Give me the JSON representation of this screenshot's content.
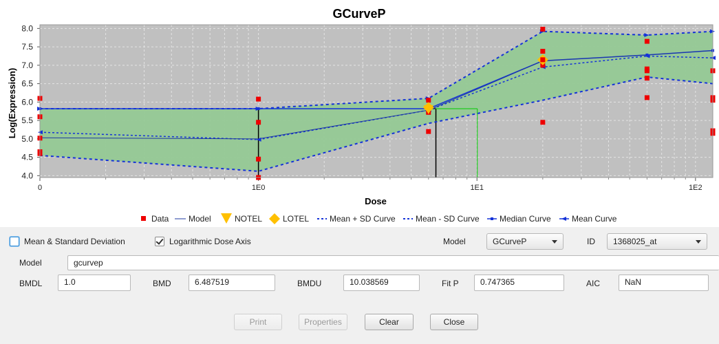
{
  "chart_data": {
    "type": "line",
    "title": "GCurveP",
    "xlabel": "Dose",
    "ylabel": "Log(Expression)",
    "x_scale": "log",
    "xlim": [
      0.1,
      120
    ],
    "ylim": [
      3.95,
      8.1
    ],
    "x_ticks": [
      {
        "value": 0.1,
        "label": "0"
      },
      {
        "value": 1,
        "label": "1E0"
      },
      {
        "value": 10,
        "label": "1E1"
      },
      {
        "value": 100,
        "label": "1E2"
      }
    ],
    "y_ticks": [
      {
        "value": 4.0,
        "label": "4.0"
      },
      {
        "value": 4.5,
        "label": "4.5"
      },
      {
        "value": 5.0,
        "label": "5.0"
      },
      {
        "value": 5.5,
        "label": "5.5"
      },
      {
        "value": 6.0,
        "label": "6.0"
      },
      {
        "value": 6.5,
        "label": "6.5"
      },
      {
        "value": 7.0,
        "label": "7.0"
      },
      {
        "value": 7.5,
        "label": "7.5"
      },
      {
        "value": 8.0,
        "label": "8.0"
      }
    ],
    "grid": true,
    "legend_position": "bottom",
    "colors": {
      "plot_bg": "#c0c0c0",
      "band": "#95c995",
      "data": "#ee0000",
      "curves": "#1432d8",
      "model": "#1e3aa0",
      "notel": "#ffc000",
      "lotel": "#ffc000",
      "bmd_line": "#000000",
      "bmdu_line": "#00cc00"
    },
    "data_points": [
      {
        "x": 0.1,
        "y": 6.1
      },
      {
        "x": 0.1,
        "y": 5.6
      },
      {
        "x": 0.1,
        "y": 5.02
      },
      {
        "x": 0.1,
        "y": 4.65
      },
      {
        "x": 0.1,
        "y": 4.6
      },
      {
        "x": 1,
        "y": 6.08
      },
      {
        "x": 1,
        "y": 5.45
      },
      {
        "x": 1,
        "y": 4.45
      },
      {
        "x": 1,
        "y": 3.95
      },
      {
        "x": 6,
        "y": 6.05
      },
      {
        "x": 6,
        "y": 5.85
      },
      {
        "x": 6,
        "y": 5.8
      },
      {
        "x": 6,
        "y": 5.72
      },
      {
        "x": 6,
        "y": 5.2
      },
      {
        "x": 20,
        "y": 7.98
      },
      {
        "x": 20,
        "y": 7.38
      },
      {
        "x": 20,
        "y": 7.15
      },
      {
        "x": 20,
        "y": 7.0
      },
      {
        "x": 20,
        "y": 5.45
      },
      {
        "x": 60,
        "y": 7.65
      },
      {
        "x": 60,
        "y": 6.9
      },
      {
        "x": 60,
        "y": 6.85
      },
      {
        "x": 60,
        "y": 6.65
      },
      {
        "x": 60,
        "y": 6.12
      },
      {
        "x": 120,
        "y": 6.85
      },
      {
        "x": 120,
        "y": 6.12
      },
      {
        "x": 120,
        "y": 6.05
      },
      {
        "x": 120,
        "y": 5.22
      },
      {
        "x": 120,
        "y": 5.15
      }
    ],
    "series": [
      {
        "name": "Model",
        "x": [
          0.1,
          1,
          6,
          20,
          60,
          120
        ],
        "values": [
          5.03,
          5.0,
          5.78,
          7.12,
          7.28,
          7.4
        ],
        "style": "solid-model"
      },
      {
        "name": "Mean + SD Curve",
        "x": [
          0.1,
          1,
          6,
          20,
          60,
          120
        ],
        "values": [
          5.82,
          5.82,
          6.1,
          7.92,
          7.82,
          7.92
        ],
        "style": "dotted"
      },
      {
        "name": "Mean - SD Curve",
        "x": [
          0.1,
          1,
          6,
          20,
          60,
          120
        ],
        "values": [
          4.55,
          4.12,
          5.42,
          6.05,
          6.68,
          6.5
        ],
        "style": "dotted"
      },
      {
        "name": "Median Curve",
        "x": [
          0.1,
          1,
          6,
          20,
          60,
          120
        ],
        "values": [
          5.82,
          5.82,
          5.82,
          7.12,
          7.28,
          7.4
        ],
        "style": "median"
      },
      {
        "name": "Mean Curve",
        "x": [
          0.1,
          1,
          6,
          20,
          60,
          120
        ],
        "values": [
          5.18,
          4.98,
          5.78,
          6.95,
          7.25,
          7.2
        ],
        "style": "mean"
      }
    ],
    "notel": {
      "x": 6,
      "y": 5.8
    },
    "lotel": [
      {
        "x": 6,
        "y": 5.85
      },
      {
        "x": 20,
        "y": 7.15
      }
    ],
    "bmd": {
      "x": 6.487519,
      "y": 5.82
    },
    "bmdl": {
      "x": 1.0,
      "y": 5.82
    },
    "bmdu": {
      "x": 10.038569,
      "y": 5.82
    },
    "legend": [
      "Data",
      "Model",
      "NOTEL",
      "LOTEL",
      "Mean + SD Curve",
      "Mean - SD Curve",
      "Median Curve",
      "Mean Curve"
    ]
  },
  "controls": {
    "mean_sd_label": "Mean & Standard Deviation",
    "mean_sd_checked": false,
    "log_dose_label": "Logarithmic Dose Axis",
    "log_dose_checked": true,
    "model_label": "Model",
    "model_selected": "GCurveP",
    "id_label": "ID",
    "id_selected": "1368025_at"
  },
  "fields": {
    "model_label": "Model",
    "model_value": "gcurvep",
    "bmdl_label": "BMDL",
    "bmdl_value": "1.0",
    "bmd_label": "BMD",
    "bmd_value": "6.487519",
    "bmdu_label": "BMDU",
    "bmdu_value": "10.038569",
    "fitp_label": "Fit P",
    "fitp_value": "0.747365",
    "aic_label": "AIC",
    "aic_value": "NaN"
  },
  "buttons": {
    "print": "Print",
    "properties": "Properties",
    "clear": "Clear",
    "close": "Close"
  }
}
